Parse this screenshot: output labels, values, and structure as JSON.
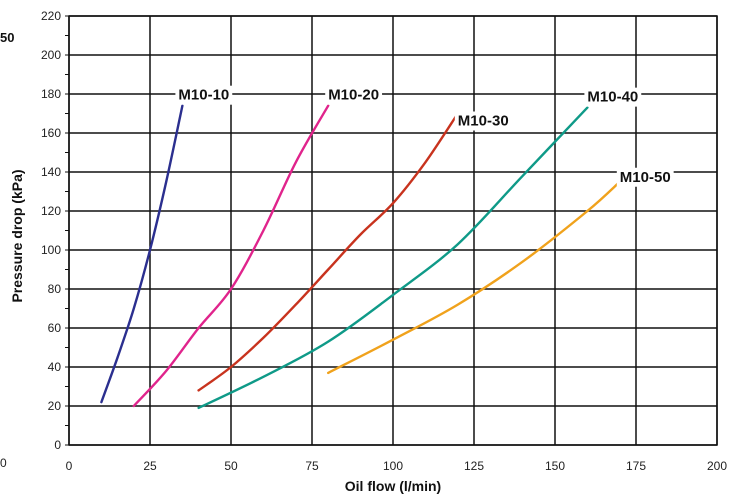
{
  "edge_texts": {
    "left_top": "50",
    "left_bottom": "0"
  },
  "chart_data": {
    "type": "line",
    "xlabel": "Oil flow (l/min)",
    "ylabel": "Pressure drop (kPa)",
    "xlim": [
      0,
      200
    ],
    "ylim": [
      0,
      220
    ],
    "xticks": [
      0,
      25,
      50,
      75,
      100,
      125,
      150,
      175,
      200
    ],
    "yticks": [
      0,
      20,
      40,
      60,
      80,
      100,
      120,
      140,
      160,
      180,
      200,
      220
    ],
    "grid": true,
    "series": [
      {
        "name": "M10-10",
        "color": "#2b2f8f",
        "points": [
          [
            10,
            22
          ],
          [
            15,
            45
          ],
          [
            20,
            70
          ],
          [
            25,
            100
          ],
          [
            30,
            135
          ],
          [
            35,
            174
          ]
        ]
      },
      {
        "name": "M10-20",
        "color": "#e0248c",
        "points": [
          [
            20,
            20
          ],
          [
            30,
            38
          ],
          [
            40,
            60
          ],
          [
            50,
            80
          ],
          [
            60,
            110
          ],
          [
            70,
            145
          ],
          [
            80,
            174
          ]
        ]
      },
      {
        "name": "M10-30",
        "color": "#c8331e",
        "points": [
          [
            40,
            28
          ],
          [
            50,
            40
          ],
          [
            60,
            55
          ],
          [
            70,
            72
          ],
          [
            80,
            90
          ],
          [
            90,
            108
          ],
          [
            100,
            124
          ],
          [
            110,
            145
          ],
          [
            120,
            170
          ]
        ]
      },
      {
        "name": "M10-40",
        "color": "#0f9a88",
        "points": [
          [
            40,
            19
          ],
          [
            60,
            35
          ],
          [
            80,
            53
          ],
          [
            100,
            77
          ],
          [
            120,
            103
          ],
          [
            140,
            138
          ],
          [
            160,
            173
          ]
        ]
      },
      {
        "name": "M10-50",
        "color": "#f0a21c",
        "points": [
          [
            80,
            37
          ],
          [
            100,
            54
          ],
          [
            120,
            72
          ],
          [
            140,
            94
          ],
          [
            160,
            120
          ],
          [
            170,
            135
          ]
        ]
      }
    ]
  }
}
